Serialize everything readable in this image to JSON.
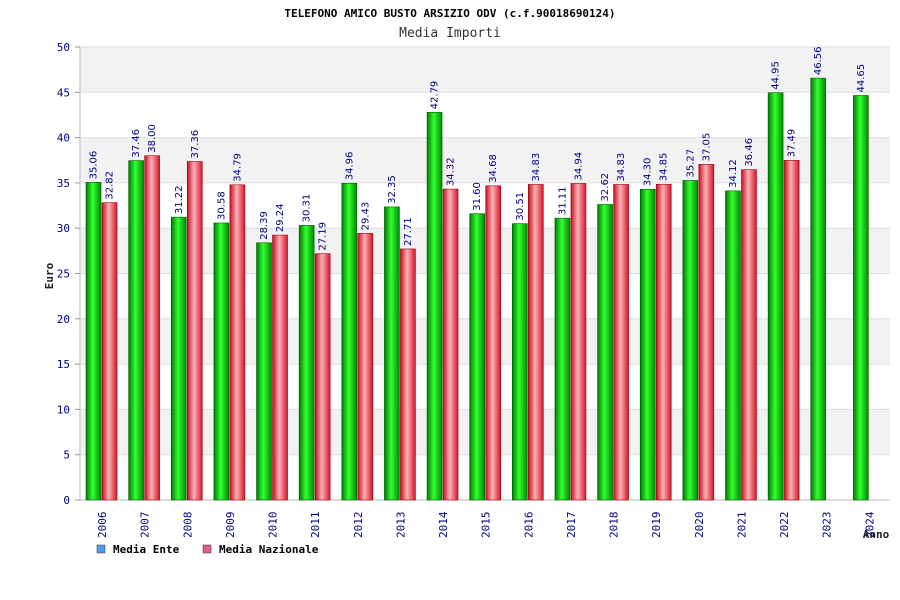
{
  "chart_data": {
    "type": "bar",
    "title": "TELEFONO AMICO BUSTO ARSIZIO ODV (c.f.90018690124)",
    "subtitle": "Media Importi",
    "ylabel": "Euro",
    "xlabel": "Anno",
    "ylim": [
      0,
      50
    ],
    "yticks": [
      0,
      5,
      10,
      15,
      20,
      25,
      30,
      35,
      40,
      45,
      50
    ],
    "categories": [
      "2006",
      "2007",
      "2008",
      "2009",
      "2010",
      "2011",
      "2012",
      "2013",
      "2014",
      "2015",
      "2016",
      "2017",
      "2018",
      "2019",
      "2020",
      "2021",
      "2022",
      "2023",
      "2024"
    ],
    "series": [
      {
        "name": "Media Ente",
        "color": "#00c000",
        "legend_color": "#5599ee",
        "values": [
          35.06,
          37.46,
          31.22,
          30.58,
          28.39,
          30.31,
          34.96,
          32.35,
          42.79,
          31.6,
          30.51,
          31.11,
          32.62,
          34.3,
          35.27,
          34.12,
          44.95,
          46.56,
          44.65
        ],
        "labels": [
          "35.06",
          "37.46",
          "31.22",
          "30.58",
          "28.39",
          "30.31",
          "34.96",
          "32.35",
          "42.79",
          "31.60",
          "30.51",
          "31.11",
          "32.62",
          "34.30",
          "35.27",
          "34.12",
          "44.95",
          "46.56",
          "44.65"
        ]
      },
      {
        "name": "Media Nazionale",
        "color": "#e82030",
        "legend_color": "#e06088",
        "values": [
          32.82,
          38.0,
          37.36,
          34.79,
          29.24,
          27.19,
          29.43,
          27.71,
          34.32,
          34.68,
          34.83,
          34.94,
          34.83,
          34.85,
          37.05,
          36.46,
          37.49,
          null,
          null
        ],
        "labels": [
          "32.82",
          "38.00",
          "37.36",
          "34.79",
          "29.24",
          "27.19",
          "29.43",
          "27.71",
          "34.32",
          "34.68",
          "34.83",
          "34.94",
          "34.83",
          "34.85",
          "37.05",
          "36.46",
          "37.49",
          null,
          null
        ]
      }
    ],
    "grid": true,
    "legend_position": "bottom-left"
  }
}
